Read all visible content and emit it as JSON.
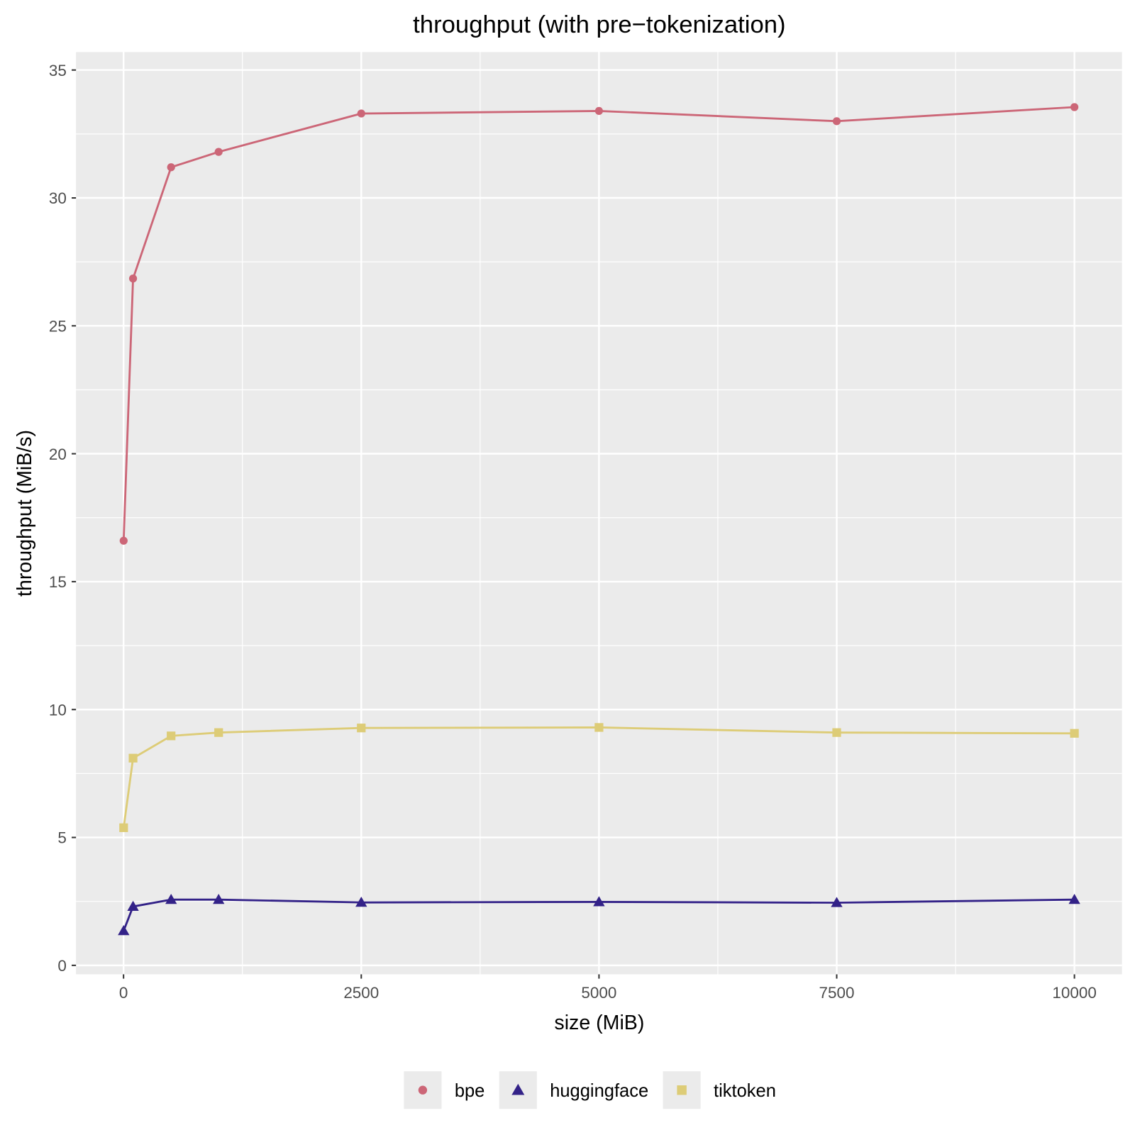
{
  "chart_data": {
    "type": "line",
    "title": "throughput (with pre−tokenization)",
    "xlabel": "size (MiB)",
    "ylabel": "throughput (MiB/s)",
    "xlim": [
      -500,
      10500
    ],
    "ylim": [
      -0.35,
      35.7
    ],
    "x_ticks": [
      0,
      2500,
      5000,
      7500,
      10000
    ],
    "x_tick_labels": [
      "0",
      "2500",
      "5000",
      "7500",
      "10000"
    ],
    "y_ticks": [
      0,
      5,
      10,
      15,
      20,
      25,
      30,
      35
    ],
    "y_tick_labels": [
      "0",
      "5",
      "10",
      "15",
      "20",
      "25",
      "30",
      "35"
    ],
    "grid": true,
    "legend_position": "bottom",
    "x": [
      1,
      100,
      500,
      1000,
      2500,
      5000,
      7500,
      10000
    ],
    "series": [
      {
        "name": "bpe",
        "color": "#CC6677",
        "marker": "circle",
        "values": [
          16.6,
          26.85,
          31.2,
          31.8,
          33.3,
          33.4,
          33.0,
          33.55
        ]
      },
      {
        "name": "huggingface",
        "color": "#332288",
        "marker": "triangle",
        "values": [
          1.35,
          2.3,
          2.57,
          2.57,
          2.46,
          2.48,
          2.45,
          2.57
        ]
      },
      {
        "name": "tiktoken",
        "color": "#DDCC77",
        "marker": "square",
        "values": [
          5.38,
          8.1,
          8.97,
          9.1,
          9.28,
          9.3,
          9.1,
          9.07
        ]
      }
    ]
  }
}
